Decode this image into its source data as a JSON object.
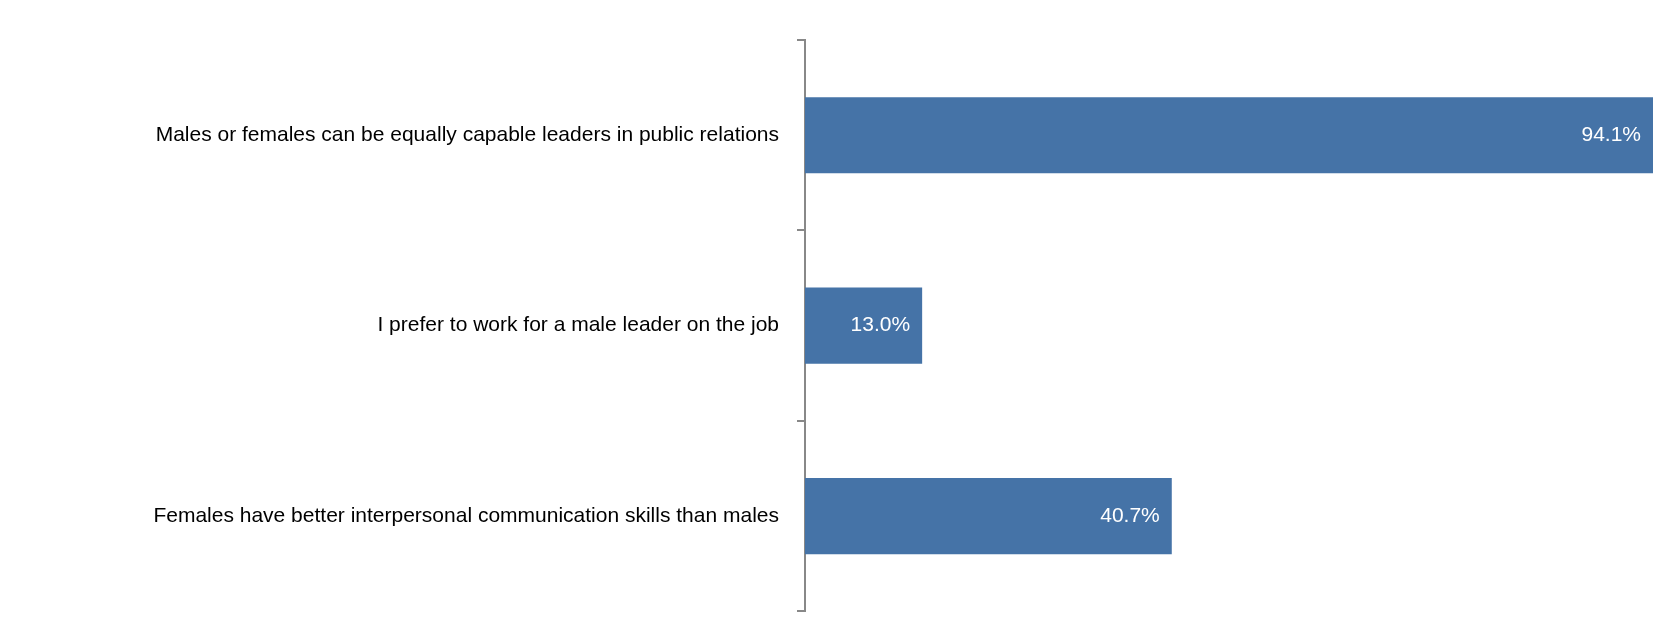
{
  "chart_data": {
    "type": "bar",
    "orientation": "horizontal",
    "categories": [
      "Males or females can be equally capable leaders in public relations",
      "I prefer to work for a male leader on the job",
      "Females have better interpersonal communication skills than males"
    ],
    "values": [
      94.1,
      13.0,
      40.7
    ],
    "color": "#4573a7",
    "value_labels": [
      "94.1%",
      "13.0%",
      "40.7%"
    ]
  }
}
